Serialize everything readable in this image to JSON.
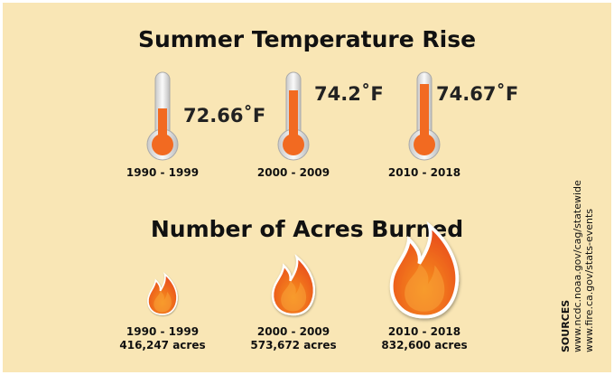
{
  "temperature": {
    "title": "Summer Temperature Rise",
    "items": [
      {
        "value": "72.66˚F",
        "period": "1990 - 1999"
      },
      {
        "value": "74.2˚F",
        "period": "2000 - 2009"
      },
      {
        "value": "74.67˚F",
        "period": "2010 - 2018"
      }
    ]
  },
  "acres": {
    "title": "Number of Acres Burned",
    "items": [
      {
        "period": "1990 - 1999",
        "acres": "416,247 acres"
      },
      {
        "period": "2000 - 2009",
        "acres": "573,672 acres"
      },
      {
        "period": "2010 - 2018",
        "acres": "832,600 acres"
      }
    ]
  },
  "sources": {
    "label": "SOURCES",
    "urls": [
      "www.ncdc.noaa.gov/cag/statewide",
      "www.fire.ca.gov/stats-events"
    ]
  }
}
